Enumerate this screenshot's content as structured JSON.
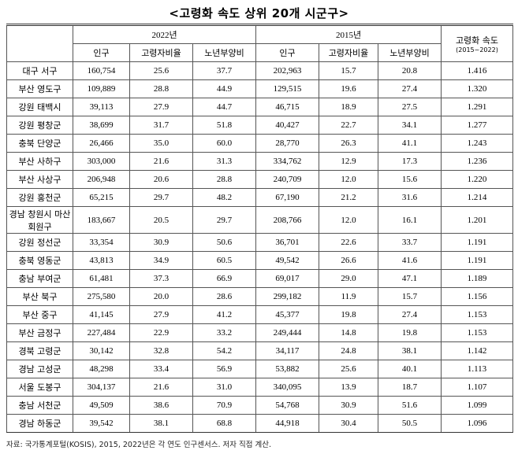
{
  "header": {
    "title": "<고령화 속도 상위 20개 시군구>"
  },
  "table": {
    "group_headers": [
      "2022년",
      "2015년"
    ],
    "speed_header": "고령화 속도",
    "speed_period": "(2015~2022)",
    "sub_headers": [
      "인구",
      "고령자비율",
      "노년부양비",
      "인구",
      "고령자비율",
      "노년부양비"
    ],
    "rows": [
      [
        "대구 서구",
        "160,754",
        "25.6",
        "37.7",
        "202,963",
        "15.7",
        "20.8",
        "1.416"
      ],
      [
        "부산 영도구",
        "109,889",
        "28.8",
        "44.9",
        "129,515",
        "19.6",
        "27.4",
        "1.320"
      ],
      [
        "강원 태백시",
        "39,113",
        "27.9",
        "44.7",
        "46,715",
        "18.9",
        "27.5",
        "1.291"
      ],
      [
        "강원 평창군",
        "38,699",
        "31.7",
        "51.8",
        "40,427",
        "22.7",
        "34.1",
        "1.277"
      ],
      [
        "충북 단양군",
        "26,466",
        "35.0",
        "60.0",
        "28,770",
        "26.3",
        "41.1",
        "1.243"
      ],
      [
        "부산 사하구",
        "303,000",
        "21.6",
        "31.3",
        "334,762",
        "12.9",
        "17.3",
        "1.236"
      ],
      [
        "부산 사상구",
        "206,948",
        "20.6",
        "28.8",
        "240,709",
        "12.0",
        "15.6",
        "1.220"
      ],
      [
        "강원 홍천군",
        "65,215",
        "29.7",
        "48.2",
        "67,190",
        "21.2",
        "31.6",
        "1.214"
      ],
      [
        "경남 창원시 마산회원구",
        "183,667",
        "20.5",
        "29.7",
        "208,766",
        "12.0",
        "16.1",
        "1.201"
      ],
      [
        "강원 정선군",
        "33,354",
        "30.9",
        "50.6",
        "36,701",
        "22.6",
        "33.7",
        "1.191"
      ],
      [
        "충북 영동군",
        "43,813",
        "34.9",
        "60.5",
        "49,542",
        "26.6",
        "41.6",
        "1.191"
      ],
      [
        "충남 부여군",
        "61,481",
        "37.3",
        "66.9",
        "69,017",
        "29.0",
        "47.1",
        "1.189"
      ],
      [
        "부산 북구",
        "275,580",
        "20.0",
        "28.6",
        "299,182",
        "11.9",
        "15.7",
        "1.156"
      ],
      [
        "부산 중구",
        "41,145",
        "27.9",
        "41.2",
        "45,377",
        "19.8",
        "27.4",
        "1.153"
      ],
      [
        "부산 금정구",
        "227,484",
        "22.9",
        "33.2",
        "249,444",
        "14.8",
        "19.8",
        "1.153"
      ],
      [
        "경북 고령군",
        "30,142",
        "32.8",
        "54.2",
        "34,117",
        "24.8",
        "38.1",
        "1.142"
      ],
      [
        "경남 고성군",
        "48,298",
        "33.4",
        "56.9",
        "53,882",
        "25.6",
        "40.1",
        "1.113"
      ],
      [
        "서울 도봉구",
        "304,137",
        "21.6",
        "31.0",
        "340,095",
        "13.9",
        "18.7",
        "1.107"
      ],
      [
        "충남 서천군",
        "49,509",
        "38.6",
        "70.9",
        "54,768",
        "30.9",
        "51.6",
        "1.099"
      ],
      [
        "경남 하동군",
        "39,542",
        "38.1",
        "68.8",
        "44,918",
        "30.4",
        "50.5",
        "1.096"
      ]
    ]
  },
  "footer": {
    "source": "자료: 국가통계포털(KOSIS), 2015, 2022년은 각 연도 인구센서스. 저자 직접 계산."
  }
}
